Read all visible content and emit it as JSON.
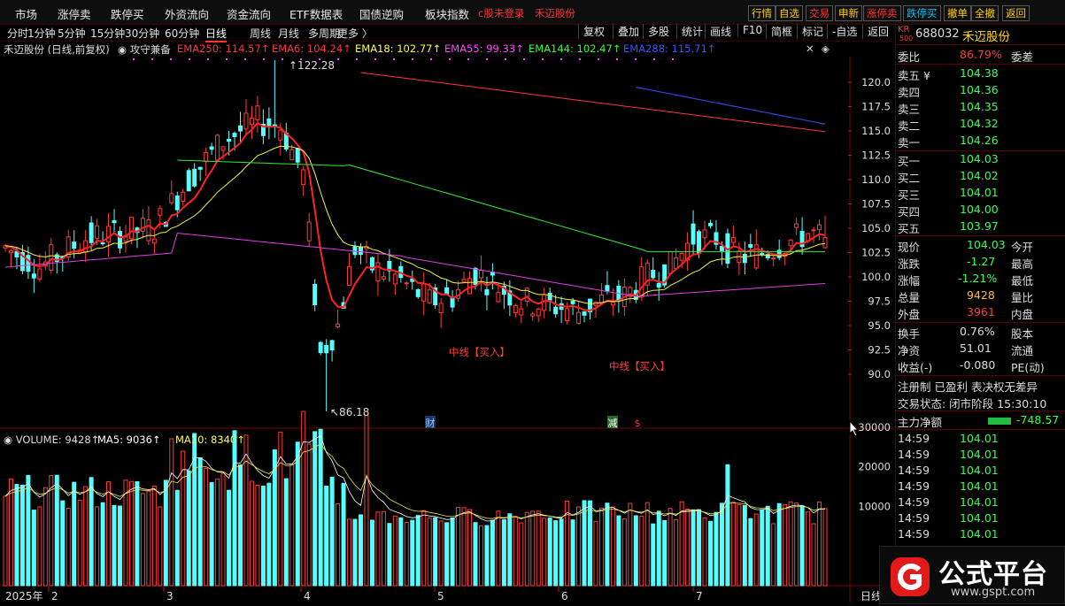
{
  "topbar": {
    "menu": [
      "市场",
      "涨停卖",
      "跌停买",
      "外资流向",
      "资金流向",
      "ETF数据表",
      "国债逆购",
      "板块指数"
    ],
    "hint": "c股未登录",
    "hint_stock": "禾迈股份",
    "buttons": [
      {
        "label": "行情",
        "color": "#ffd100"
      },
      {
        "label": "自选",
        "color": "#ffd100"
      },
      {
        "label": "交易",
        "color": "#ff3333"
      },
      {
        "label": "申新",
        "color": "#ffd100"
      },
      {
        "label": "涨停卖",
        "color": "#ff3333"
      },
      {
        "label": "跌停买",
        "color": "#00c8ff"
      },
      {
        "label": "撤单",
        "color": "#ffd100"
      },
      {
        "label": "全撤",
        "color": "#ffd100"
      },
      {
        "label": "返回",
        "color": "#ffd100"
      }
    ]
  },
  "periods": [
    "分时",
    "1分钟",
    "5分钟",
    "15分钟",
    "30分钟",
    "60分钟",
    "日线",
    "周线",
    "月线",
    "多周期",
    "更多 〉"
  ],
  "active_period": "日线",
  "toolbar": [
    "复权",
    "叠加",
    "多股",
    "统计",
    "画线",
    "F10",
    "简框",
    "标记",
    "-自选",
    "返回"
  ],
  "legend": {
    "title": "禾迈股份 (日线,前复权)",
    "formula": "攻守兼备",
    "emas": [
      {
        "label": "EMA250: 114.57",
        "color": "#ff3344"
      },
      {
        "label": "EMA6: 104.24",
        "color": "#ff3344"
      },
      {
        "label": "EMA18: 102.77",
        "color": "#ffff33"
      },
      {
        "label": "EMA55: 99.33",
        "color": "#ff44ff"
      },
      {
        "label": "EMA144: 102.47",
        "color": "#33ff33"
      },
      {
        "label": "EMA288: 115.71",
        "color": "#3355ff"
      }
    ]
  },
  "vol_legend": {
    "volume": "VOLUME: 9428",
    "ma5": "MA5: 9036",
    "ma10": "MA10: 8340"
  },
  "annotations": {
    "high": "122.28",
    "low": "86.18",
    "buy1": "中线【买入】",
    "buy2": "中线【买入】",
    "cai": "财",
    "jian": "减",
    "s": "$"
  },
  "chart_data": {
    "type": "candlestick",
    "y_ticks": [
      120.0,
      117.5,
      115.0,
      112.5,
      110.0,
      107.5,
      105.0,
      102.5,
      100.0,
      97.5,
      95.0,
      92.5,
      90.0
    ],
    "vol_ticks": [
      "30000",
      "20000",
      "10000"
    ],
    "x_labels": [
      "2025年",
      "2",
      "3",
      "4",
      "5",
      "6",
      "7",
      "日线"
    ],
    "last": {
      "open": 103.0,
      "close": 104.03,
      "high": 106.3,
      "low": 102.9
    },
    "ema6_last": 104.24,
    "ema18_last": 102.77,
    "ema55_last": 99.33,
    "ema144_last": 102.47,
    "ema250_last": 114.57,
    "ema288_last": 115.71,
    "price_high": 122.28,
    "price_low": 86.18,
    "volume_last": 9428,
    "ma5_last": 9036,
    "ma10_last": 8340
  },
  "quote": {
    "code": "688032",
    "name": "禾迈股份",
    "kr": "KR",
    "kr_num": "500",
    "weibi_label": "委比",
    "weibi": "86.79%",
    "weicha_label": "委差",
    "asks": [
      {
        "label": "卖五 ¥",
        "price": "104.38"
      },
      {
        "label": "卖四",
        "price": "104.36"
      },
      {
        "label": "卖三",
        "price": "104.35"
      },
      {
        "label": "卖二",
        "price": "104.32"
      },
      {
        "label": "卖一",
        "price": "104.26"
      }
    ],
    "bids": [
      {
        "label": "买一",
        "price": "104.03"
      },
      {
        "label": "买二",
        "price": "104.02"
      },
      {
        "label": "买三",
        "price": "104.01"
      },
      {
        "label": "买四",
        "price": "104.00"
      },
      {
        "label": "买五",
        "price": "103.97"
      }
    ],
    "stats": [
      [
        "现价",
        "104.03",
        "今开",
        ""
      ],
      [
        "涨跌",
        "-1.27",
        "最高",
        ""
      ],
      [
        "涨幅",
        "-1.21%",
        "最低",
        ""
      ],
      [
        "总量",
        "9428",
        "量比",
        ""
      ],
      [
        "外盘",
        "3961",
        "内盘",
        ""
      ]
    ],
    "stats2": [
      [
        "换手",
        "0.76%",
        "股本"
      ],
      [
        "净资",
        "51.01",
        "流通"
      ],
      [
        "收益(-)",
        "-0.080",
        "PE(动)"
      ]
    ],
    "reg": "注册制 已盈利 表决权无差异",
    "status": "交易状态: 闭市阶段 15:30:10",
    "netflow_label": "主力净额",
    "netflow": "-748.57",
    "ticks": [
      [
        "14:59",
        "104.01"
      ],
      [
        "14:59",
        "104.01"
      ],
      [
        "14:59",
        "104.01"
      ],
      [
        "14:59",
        "104.01"
      ],
      [
        "14:59",
        "104.01"
      ],
      [
        "14:59",
        "104.01"
      ],
      [
        "14:59",
        "104.01"
      ],
      [
        "14:59",
        "104.01"
      ],
      [
        "14:59",
        "104.01"
      ]
    ]
  },
  "logo": {
    "text": "公式平台",
    "url": "www.gspt.com"
  }
}
